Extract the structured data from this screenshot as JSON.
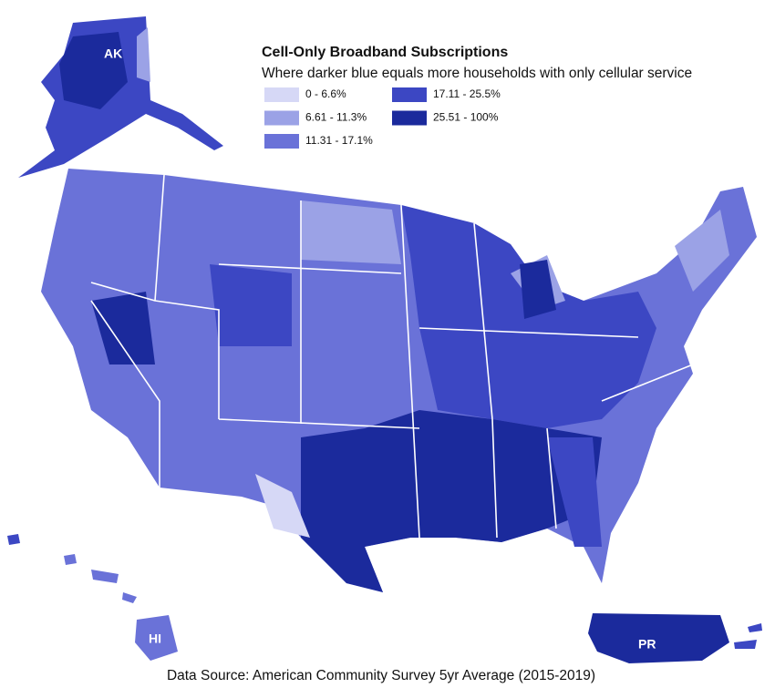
{
  "map": {
    "title": "Cell-Only Broadband Subscriptions",
    "subtitle": "Where darker blue equals more households with only cellular service",
    "legend": [
      {
        "label": "0 - 6.6%",
        "color": "#d6d8f6"
      },
      {
        "label": "6.61 - 11.3%",
        "color": "#9ba2e6"
      },
      {
        "label": "11.31 - 17.1%",
        "color": "#6a72d8"
      },
      {
        "label": "17.11 - 25.5%",
        "color": "#3c47c3"
      },
      {
        "label": "25.51 - 100%",
        "color": "#1b2a9c"
      }
    ],
    "region_labels": [
      "AK",
      "HI",
      "PR"
    ],
    "source": "Data Source: American Community Survey 5yr Average (2015-2019)"
  }
}
